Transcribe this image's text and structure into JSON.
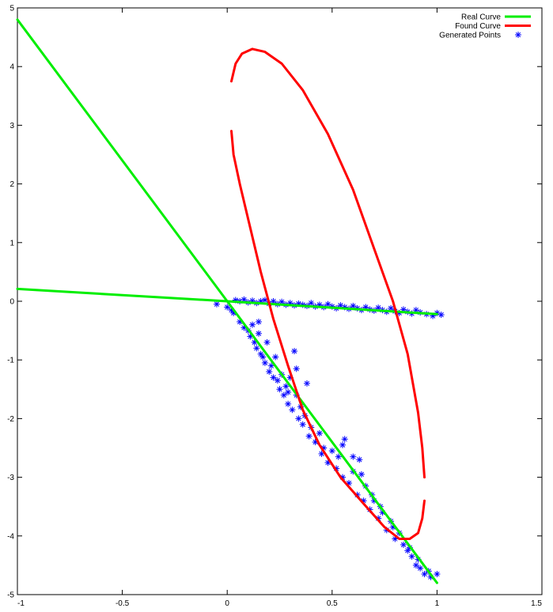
{
  "chart_data": {
    "type": "line",
    "title": "",
    "xlabel": "",
    "ylabel": "",
    "xlim": [
      -1,
      1.5
    ],
    "ylim": [
      -5,
      5
    ],
    "x_ticks": [
      -1,
      -0.5,
      0,
      0.5,
      1,
      1.5
    ],
    "x_tick_labels": [
      "-1",
      "-0.5",
      "0",
      "0.5",
      "1",
      "1.5"
    ],
    "y_ticks": [
      -5,
      -4,
      -3,
      -2,
      -1,
      0,
      1,
      2,
      3,
      4,
      5
    ],
    "y_tick_labels": [
      "-5",
      "-4",
      "-3",
      "-2",
      "-1",
      "0",
      "1",
      "2",
      "3",
      "4",
      "5"
    ],
    "grid": false,
    "legend_position": "top-right",
    "series": [
      {
        "name": "Real Curve",
        "kind": "line",
        "color": "#00ee00",
        "segments": [
          [
            [
              -1,
              0.21
            ],
            [
              0,
              0
            ],
            [
              1,
              -0.22
            ]
          ],
          [
            [
              -1,
              4.8
            ],
            [
              0,
              0
            ],
            [
              1,
              -4.8
            ]
          ]
        ]
      },
      {
        "name": "Found Curve",
        "kind": "line",
        "color": "#ff0000",
        "segments": [
          [
            [
              0.02,
              3.75
            ],
            [
              0.04,
              4.05
            ],
            [
              0.07,
              4.22
            ],
            [
              0.12,
              4.3
            ],
            [
              0.18,
              4.25
            ],
            [
              0.26,
              4.05
            ],
            [
              0.36,
              3.6
            ],
            [
              0.48,
              2.85
            ],
            [
              0.6,
              1.9
            ],
            [
              0.7,
              0.9
            ],
            [
              0.79,
              0
            ],
            [
              0.86,
              -0.9
            ],
            [
              0.91,
              -1.9
            ],
            [
              0.93,
              -2.5
            ],
            [
              0.94,
              -3.0
            ]
          ],
          [
            [
              0.94,
              -3.4
            ],
            [
              0.93,
              -3.7
            ],
            [
              0.91,
              -3.95
            ],
            [
              0.87,
              -4.05
            ],
            [
              0.82,
              -4.05
            ],
            [
              0.75,
              -3.85
            ],
            [
              0.65,
              -3.45
            ],
            [
              0.54,
              -3.0
            ],
            [
              0.44,
              -2.45
            ],
            [
              0.36,
              -1.85
            ],
            [
              0.29,
              -1.1
            ],
            [
              0.22,
              -0.3
            ],
            [
              0.16,
              0.5
            ],
            [
              0.1,
              1.4
            ],
            [
              0.06,
              2.0
            ],
            [
              0.03,
              2.5
            ],
            [
              0.02,
              2.9
            ]
          ]
        ]
      },
      {
        "name": "Generated Points",
        "kind": "scatter",
        "color": "#0000ff",
        "points": [
          [
            -0.05,
            -0.05
          ],
          [
            0,
            -0.1
          ],
          [
            0.02,
            -0.15
          ],
          [
            0.04,
            0.02
          ],
          [
            0.06,
            0.0
          ],
          [
            0.08,
            0.03
          ],
          [
            0.1,
            -0.02
          ],
          [
            0.12,
            0.01
          ],
          [
            0.14,
            -0.03
          ],
          [
            0.16,
            0.0
          ],
          [
            0.18,
            0.02
          ],
          [
            0.2,
            -0.04
          ],
          [
            0.22,
            0.0
          ],
          [
            0.24,
            -0.05
          ],
          [
            0.26,
            -0.01
          ],
          [
            0.28,
            -0.06
          ],
          [
            0.3,
            -0.03
          ],
          [
            0.32,
            -0.07
          ],
          [
            0.34,
            -0.04
          ],
          [
            0.36,
            -0.06
          ],
          [
            0.38,
            -0.08
          ],
          [
            0.4,
            -0.03
          ],
          [
            0.42,
            -0.09
          ],
          [
            0.44,
            -0.06
          ],
          [
            0.46,
            -0.1
          ],
          [
            0.48,
            -0.05
          ],
          [
            0.5,
            -0.09
          ],
          [
            0.52,
            -0.12
          ],
          [
            0.54,
            -0.07
          ],
          [
            0.56,
            -0.1
          ],
          [
            0.58,
            -0.13
          ],
          [
            0.6,
            -0.08
          ],
          [
            0.62,
            -0.12
          ],
          [
            0.64,
            -0.15
          ],
          [
            0.66,
            -0.1
          ],
          [
            0.68,
            -0.14
          ],
          [
            0.7,
            -0.16
          ],
          [
            0.72,
            -0.11
          ],
          [
            0.74,
            -0.15
          ],
          [
            0.76,
            -0.18
          ],
          [
            0.78,
            -0.12
          ],
          [
            0.8,
            -0.17
          ],
          [
            0.82,
            -0.2
          ],
          [
            0.84,
            -0.14
          ],
          [
            0.86,
            -0.18
          ],
          [
            0.88,
            -0.21
          ],
          [
            0.9,
            -0.15
          ],
          [
            0.92,
            -0.19
          ],
          [
            0.95,
            -0.22
          ],
          [
            0.98,
            -0.25
          ],
          [
            1.0,
            -0.2
          ],
          [
            1.02,
            -0.23
          ],
          [
            0.03,
            -0.2
          ],
          [
            0.06,
            -0.35
          ],
          [
            0.08,
            -0.45
          ],
          [
            0.1,
            -0.5
          ],
          [
            0.12,
            -0.4
          ],
          [
            0.11,
            -0.6
          ],
          [
            0.13,
            -0.7
          ],
          [
            0.14,
            -0.8
          ],
          [
            0.15,
            -0.55
          ],
          [
            0.16,
            -0.9
          ],
          [
            0.17,
            -0.95
          ],
          [
            0.18,
            -1.05
          ],
          [
            0.19,
            -0.7
          ],
          [
            0.2,
            -1.2
          ],
          [
            0.21,
            -1.1
          ],
          [
            0.22,
            -1.3
          ],
          [
            0.24,
            -1.35
          ],
          [
            0.25,
            -1.5
          ],
          [
            0.26,
            -1.25
          ],
          [
            0.27,
            -1.6
          ],
          [
            0.28,
            -1.45
          ],
          [
            0.29,
            -1.75
          ],
          [
            0.3,
            -1.3
          ],
          [
            0.31,
            -1.85
          ],
          [
            0.32,
            -0.85
          ],
          [
            0.33,
            -1.6
          ],
          [
            0.34,
            -2.0
          ],
          [
            0.35,
            -1.8
          ],
          [
            0.36,
            -2.1
          ],
          [
            0.37,
            -1.95
          ],
          [
            0.38,
            -1.4
          ],
          [
            0.39,
            -2.3
          ],
          [
            0.4,
            -2.15
          ],
          [
            0.42,
            -2.4
          ],
          [
            0.44,
            -2.25
          ],
          [
            0.45,
            -2.6
          ],
          [
            0.46,
            -2.5
          ],
          [
            0.48,
            -2.75
          ],
          [
            0.5,
            -2.55
          ],
          [
            0.52,
            -2.85
          ],
          [
            0.53,
            -2.65
          ],
          [
            0.55,
            -3.0
          ],
          [
            0.56,
            -2.35
          ],
          [
            0.58,
            -3.1
          ],
          [
            0.6,
            -2.9
          ],
          [
            0.62,
            -3.3
          ],
          [
            0.63,
            -2.7
          ],
          [
            0.65,
            -3.4
          ],
          [
            0.66,
            -3.15
          ],
          [
            0.68,
            -3.55
          ],
          [
            0.7,
            -3.4
          ],
          [
            0.72,
            -3.7
          ],
          [
            0.74,
            -3.6
          ],
          [
            0.76,
            -3.9
          ],
          [
            0.78,
            -3.75
          ],
          [
            0.8,
            -4.05
          ],
          [
            0.82,
            -3.95
          ],
          [
            0.84,
            -4.15
          ],
          [
            0.86,
            -4.25
          ],
          [
            0.88,
            -4.35
          ],
          [
            0.9,
            -4.5
          ],
          [
            0.92,
            -4.55
          ],
          [
            0.94,
            -4.65
          ],
          [
            0.96,
            -4.6
          ],
          [
            0.97,
            -4.7
          ],
          [
            1.0,
            -4.65
          ],
          [
            0.87,
            -4.2
          ],
          [
            0.91,
            -4.4
          ],
          [
            0.55,
            -2.45
          ],
          [
            0.6,
            -2.65
          ],
          [
            0.64,
            -2.95
          ],
          [
            0.69,
            -3.3
          ],
          [
            0.73,
            -3.5
          ],
          [
            0.79,
            -3.85
          ],
          [
            0.23,
            -0.95
          ],
          [
            0.29,
            -1.55
          ],
          [
            0.33,
            -1.15
          ],
          [
            0.15,
            -0.35
          ]
        ]
      }
    ]
  }
}
